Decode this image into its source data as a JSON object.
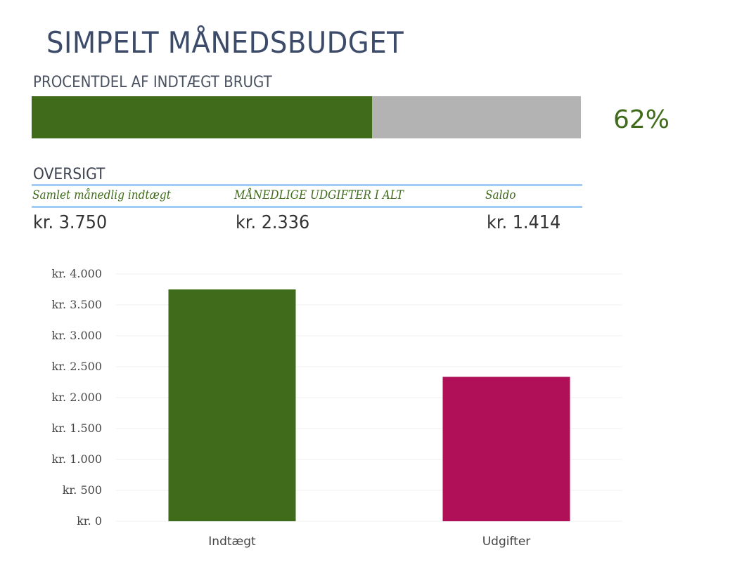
{
  "title": "SIMPELT MÅNEDSBUDGET",
  "progress": {
    "label": "PROCENTDEL AF INDTÆGT BRUGT",
    "value_percent": 62,
    "display": "62%",
    "fill_color": "#3f6b1a",
    "track_color": "#b3b3b3"
  },
  "overview": {
    "heading": "OVERSIGT",
    "columns": [
      {
        "header": "Samlet månedlig indtægt",
        "value": "kr. 3.750"
      },
      {
        "header": "MÅNEDLIGE UDGIFTER I ALT",
        "value": "kr. 2.336"
      },
      {
        "header": "Saldo",
        "value": "kr. 1.414"
      }
    ]
  },
  "chart_data": {
    "type": "bar",
    "categories": [
      "Indtægt",
      "Udgifter"
    ],
    "values": [
      3750,
      2336
    ],
    "colors": [
      "#3f6b1a",
      "#b01058"
    ],
    "ylim": [
      0,
      4000
    ],
    "yticks": [
      0,
      500,
      1000,
      1500,
      2000,
      2500,
      3000,
      3500,
      4000
    ],
    "ytick_labels": [
      "kr. 0",
      "kr. 500",
      "kr. 1.000",
      "kr. 1.500",
      "kr. 2.000",
      "kr. 2.500",
      "kr. 3.000",
      "kr. 3.500",
      "kr. 4.000"
    ],
    "grid": true,
    "legend": "none"
  }
}
